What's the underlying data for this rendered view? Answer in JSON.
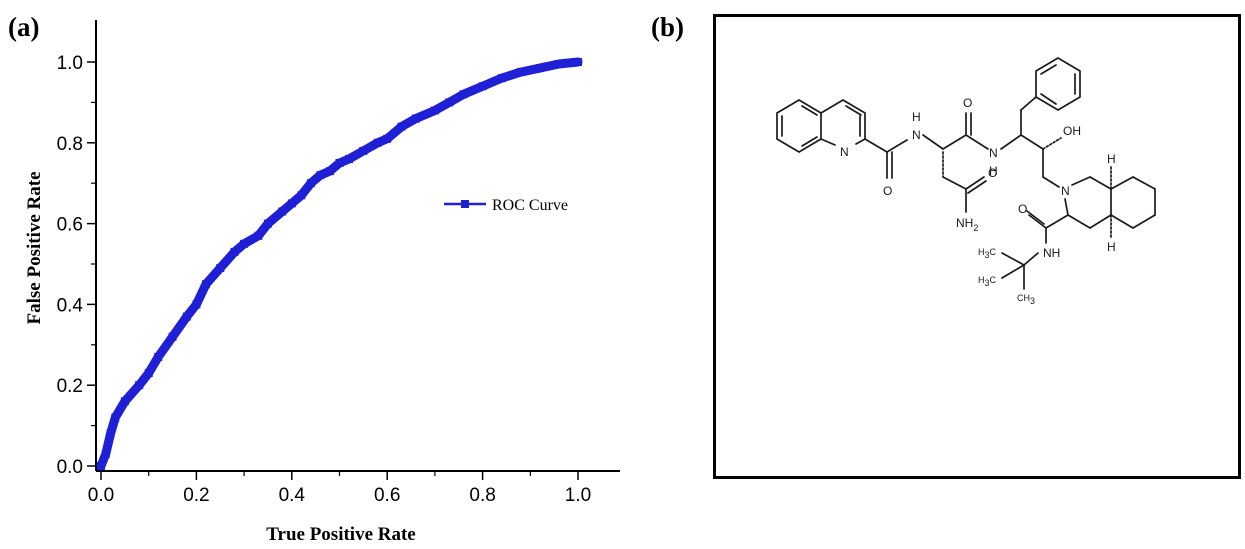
{
  "panels": {
    "a_label": "(a)",
    "b_label": "(b)"
  },
  "colors": {
    "curve": "#1f1fd6",
    "axis": "#000000"
  },
  "chart_data": {
    "type": "line",
    "title": "",
    "xlabel": "True Positive Rate",
    "ylabel": "False Positive Rate",
    "xlim": [
      0,
      1
    ],
    "ylim": [
      0,
      1
    ],
    "xticks": [
      "0.0",
      "0.2",
      "0.4",
      "0.6",
      "0.8",
      "1.0"
    ],
    "yticks": [
      "0.0",
      "0.2",
      "0.4",
      "0.6",
      "0.8",
      "1.0"
    ],
    "grid": false,
    "legend_position": "right-middle",
    "series": [
      {
        "name": "ROC Curve",
        "marker": "square",
        "x": [
          0.0,
          0.01,
          0.02,
          0.03,
          0.05,
          0.08,
          0.1,
          0.12,
          0.15,
          0.18,
          0.2,
          0.22,
          0.25,
          0.28,
          0.3,
          0.33,
          0.35,
          0.38,
          0.4,
          0.42,
          0.44,
          0.46,
          0.48,
          0.5,
          0.52,
          0.55,
          0.58,
          0.6,
          0.63,
          0.66,
          0.7,
          0.73,
          0.76,
          0.8,
          0.84,
          0.88,
          0.92,
          0.96,
          1.0
        ],
        "y": [
          0.0,
          0.03,
          0.08,
          0.12,
          0.16,
          0.2,
          0.23,
          0.27,
          0.32,
          0.37,
          0.4,
          0.45,
          0.49,
          0.53,
          0.55,
          0.57,
          0.6,
          0.63,
          0.65,
          0.67,
          0.7,
          0.72,
          0.73,
          0.75,
          0.76,
          0.78,
          0.8,
          0.81,
          0.84,
          0.86,
          0.88,
          0.9,
          0.92,
          0.94,
          0.96,
          0.975,
          0.985,
          0.995,
          1.0
        ]
      }
    ]
  },
  "molecule": {
    "atoms": {
      "n_quinoline": "N",
      "o1": "O",
      "nh1": "H",
      "n1": "N",
      "o2": "O",
      "nh2_n": "N",
      "nh2_h": "H",
      "oh": "OH",
      "o3": "O",
      "nh2": "NH",
      "nh2_sub": "2",
      "n_ring": "N",
      "h_top": "H",
      "h_bottom": "H",
      "o4": "O",
      "nh3": "NH",
      "h3c_1": "H",
      "h3c_1_sub": "3",
      "h3c_1_c": "C",
      "h3c_2": "H",
      "h3c_2_sub": "3",
      "h3c_2_c": "C",
      "ch3": "CH",
      "ch3_sub": "3"
    }
  }
}
